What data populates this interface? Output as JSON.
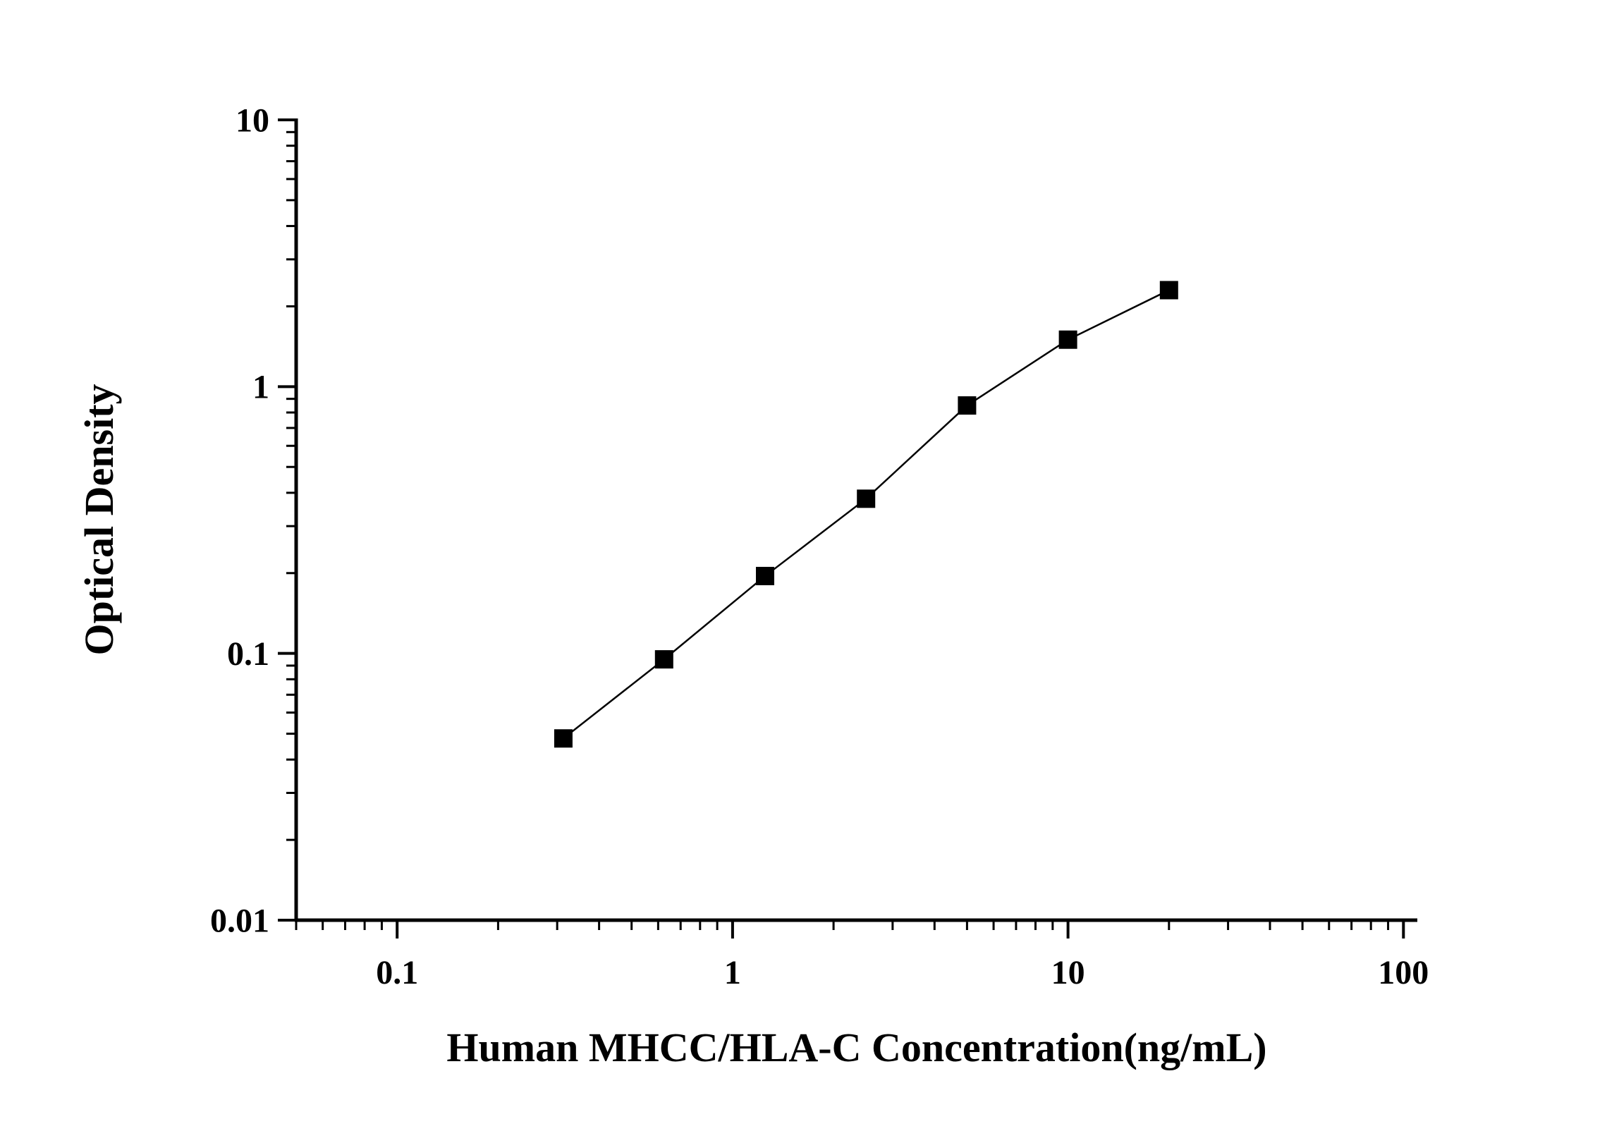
{
  "chart_data": {
    "type": "line",
    "title": "",
    "xlabel": "Human MHCC/HLA-C Concentration(ng/mL)",
    "ylabel": "Optical Density",
    "x_scale": "log",
    "y_scale": "log",
    "xlim": [
      0.05,
      110
    ],
    "ylim": [
      0.01,
      10
    ],
    "x_major_ticks": [
      0.1,
      1,
      10,
      100
    ],
    "y_major_ticks": [
      0.01,
      0.1,
      1,
      10
    ],
    "grid": false,
    "legend": "none",
    "line_color": "#000000",
    "marker": "square",
    "series": [
      {
        "x": [
          0.313,
          0.625,
          1.25,
          2.5,
          5,
          10,
          20
        ],
        "y": [
          0.048,
          0.095,
          0.195,
          0.38,
          0.85,
          1.5,
          2.3
        ]
      }
    ]
  }
}
